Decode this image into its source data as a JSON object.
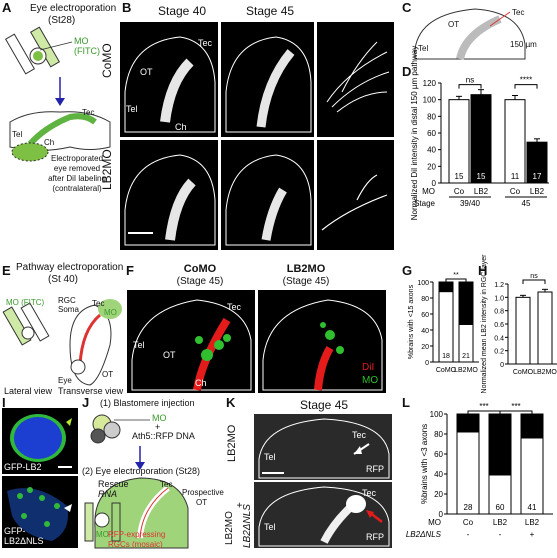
{
  "panels": {
    "A": {
      "label": "A",
      "title": "Eye electroporation",
      "title_sub": "(St28)",
      "mo": "MO",
      "fitc": "(FITC)",
      "tec": "Tec",
      "tel": "Tel",
      "ch": "Ch",
      "removed_1": "Electroporated",
      "removed_2": "eye removed",
      "removed_3": "after DiI labeling",
      "removed_4": "(contralateral)"
    },
    "B": {
      "label": "B",
      "stage40": "Stage 40",
      "stage45": "Stage 45",
      "row1": "CoMO",
      "row2": "LB2MO",
      "tec": "Tec",
      "ot": "OT",
      "tel": "Tel",
      "ch": "Ch"
    },
    "C": {
      "label": "C",
      "tec": "Tec",
      "ot": "OT",
      "tel": "Tel",
      "scale": "150 µm"
    },
    "D": {
      "label": "D"
    },
    "E": {
      "label": "E",
      "title": "Pathway electroporation",
      "title_sub": "(St 40)",
      "mo": "MO (FITC)",
      "rgc1": "RGC",
      "rgc2": "Soma",
      "tec": "Tec",
      "mo2": "MO",
      "eye": "Eye",
      "ot": "OT",
      "lateral": "Lateral view",
      "transverse": "Transverse view"
    },
    "F": {
      "label": "F",
      "col1": "CoMO",
      "col1s": "(Stage 45)",
      "col2": "LB2MO",
      "col2s": "(Stage 45)",
      "tec": "Tec",
      "tel": "Tel",
      "ot": "OT",
      "ch": "Ch",
      "dil": "DiI",
      "mo": "MO",
      "dil2": "DiI",
      "mo2": "MO"
    },
    "G": {
      "label": "G"
    },
    "H": {
      "label": "H"
    },
    "I": {
      "label": "I",
      "gfp1": "GFP-LB2",
      "gfp2a": "GFP-",
      "gfp2b": "LB2ΔNLS"
    },
    "J": {
      "label": "J",
      "step1": "(1) Blastomere injection",
      "mo": "MO",
      "plus": "+",
      "ath": "Ath5::RFP DNA",
      "step2": "(2) Eye electroporation (St28)",
      "rescue": "Rescue",
      "rna": "RNA",
      "tec": "Tec",
      "prosp1": "Prospective",
      "prosp2": "OT",
      "mo2": "MO",
      "rfp1": "RFP-expressing",
      "rfp2": "RGCs (mosaic)"
    },
    "K": {
      "label": "K",
      "stage": "Stage 45",
      "row1": "LB2MO",
      "row2a": "LB2MO",
      "row2b": "+",
      "row2c": "LB2ΔNLS",
      "tec": "Tec",
      "tel": "Tel",
      "rfp": "RFP",
      "tec2": "Tec",
      "tel2": "Tel",
      "rfp2": "RFP"
    },
    "L": {
      "label": "L"
    }
  },
  "chart_data": [
    {
      "panel": "D",
      "type": "bar",
      "ylabel": "Normalized DiI intensity in distal 150 µm pathway",
      "ylim": [
        0,
        120
      ],
      "yticks": [
        0,
        20,
        40,
        60,
        80,
        100,
        120
      ],
      "categories": [
        "Co",
        "LB2",
        "Co",
        "LB2"
      ],
      "values": [
        100,
        106,
        100,
        49
      ],
      "errors": [
        4,
        6,
        5,
        4
      ],
      "colors": [
        "#ffffff",
        "#000000",
        "#ffffff",
        "#000000"
      ],
      "n": [
        "15",
        "15",
        "11",
        "17"
      ],
      "row_labels": {
        "mo": "MO",
        "stage": "Stage"
      },
      "groups": [
        "39/40",
        "45"
      ],
      "significance": [
        {
          "between": [
            0,
            1
          ],
          "label": "ns"
        },
        {
          "between": [
            2,
            3
          ],
          "label": "****"
        }
      ]
    },
    {
      "panel": "G",
      "type": "bar",
      "stacked": true,
      "ylabel": "%brains with <15 axons",
      "ylim": [
        0,
        100
      ],
      "yticks": [
        0,
        20,
        40,
        60,
        80,
        100
      ],
      "categories": [
        "CoMO",
        "LB2MO"
      ],
      "series": [
        {
          "name": "",
          "values": [
            88,
            47
          ],
          "color": "#ffffff"
        },
        {
          "name": "",
          "values": [
            12,
            53
          ],
          "color": "#000000"
        }
      ],
      "n": [
        "18",
        "21"
      ],
      "significance": [
        {
          "between": [
            0,
            1
          ],
          "label": "**"
        }
      ]
    },
    {
      "panel": "H",
      "type": "bar",
      "ylabel": "Normalized mean LB2 intensity in RGC layer",
      "ylim": [
        0,
        1.2
      ],
      "yticks": [
        "0",
        "0.2",
        "0.4",
        "0.6",
        "0.8",
        "1.0",
        "1.2"
      ],
      "categories": [
        "CoMO",
        "LB2MO"
      ],
      "values": [
        1.0,
        1.08
      ],
      "errors": [
        0.03,
        0.04
      ],
      "significance": [
        {
          "between": [
            0,
            1
          ],
          "label": "ns"
        }
      ]
    },
    {
      "panel": "L",
      "type": "bar",
      "stacked": true,
      "ylabel": "%brains with <3 axons",
      "ylim": [
        0,
        100
      ],
      "yticks": [
        0,
        20,
        40,
        60,
        80,
        100
      ],
      "categories": [
        "Co",
        "LB2",
        "LB2"
      ],
      "row_labels": {
        "mo": "MO",
        "rescue": "LB2ΔNLS"
      },
      "rescue": [
        "-",
        "-",
        "+"
      ],
      "series": [
        {
          "name": "",
          "values": [
            82,
            39,
            76
          ],
          "color": "#ffffff"
        },
        {
          "name": "",
          "values": [
            18,
            61,
            24
          ],
          "color": "#000000"
        }
      ],
      "n": [
        "28",
        "60",
        "41"
      ],
      "significance": [
        {
          "between": [
            0,
            1
          ],
          "label": "***"
        },
        {
          "between": [
            1,
            2
          ],
          "label": "***"
        }
      ]
    }
  ]
}
